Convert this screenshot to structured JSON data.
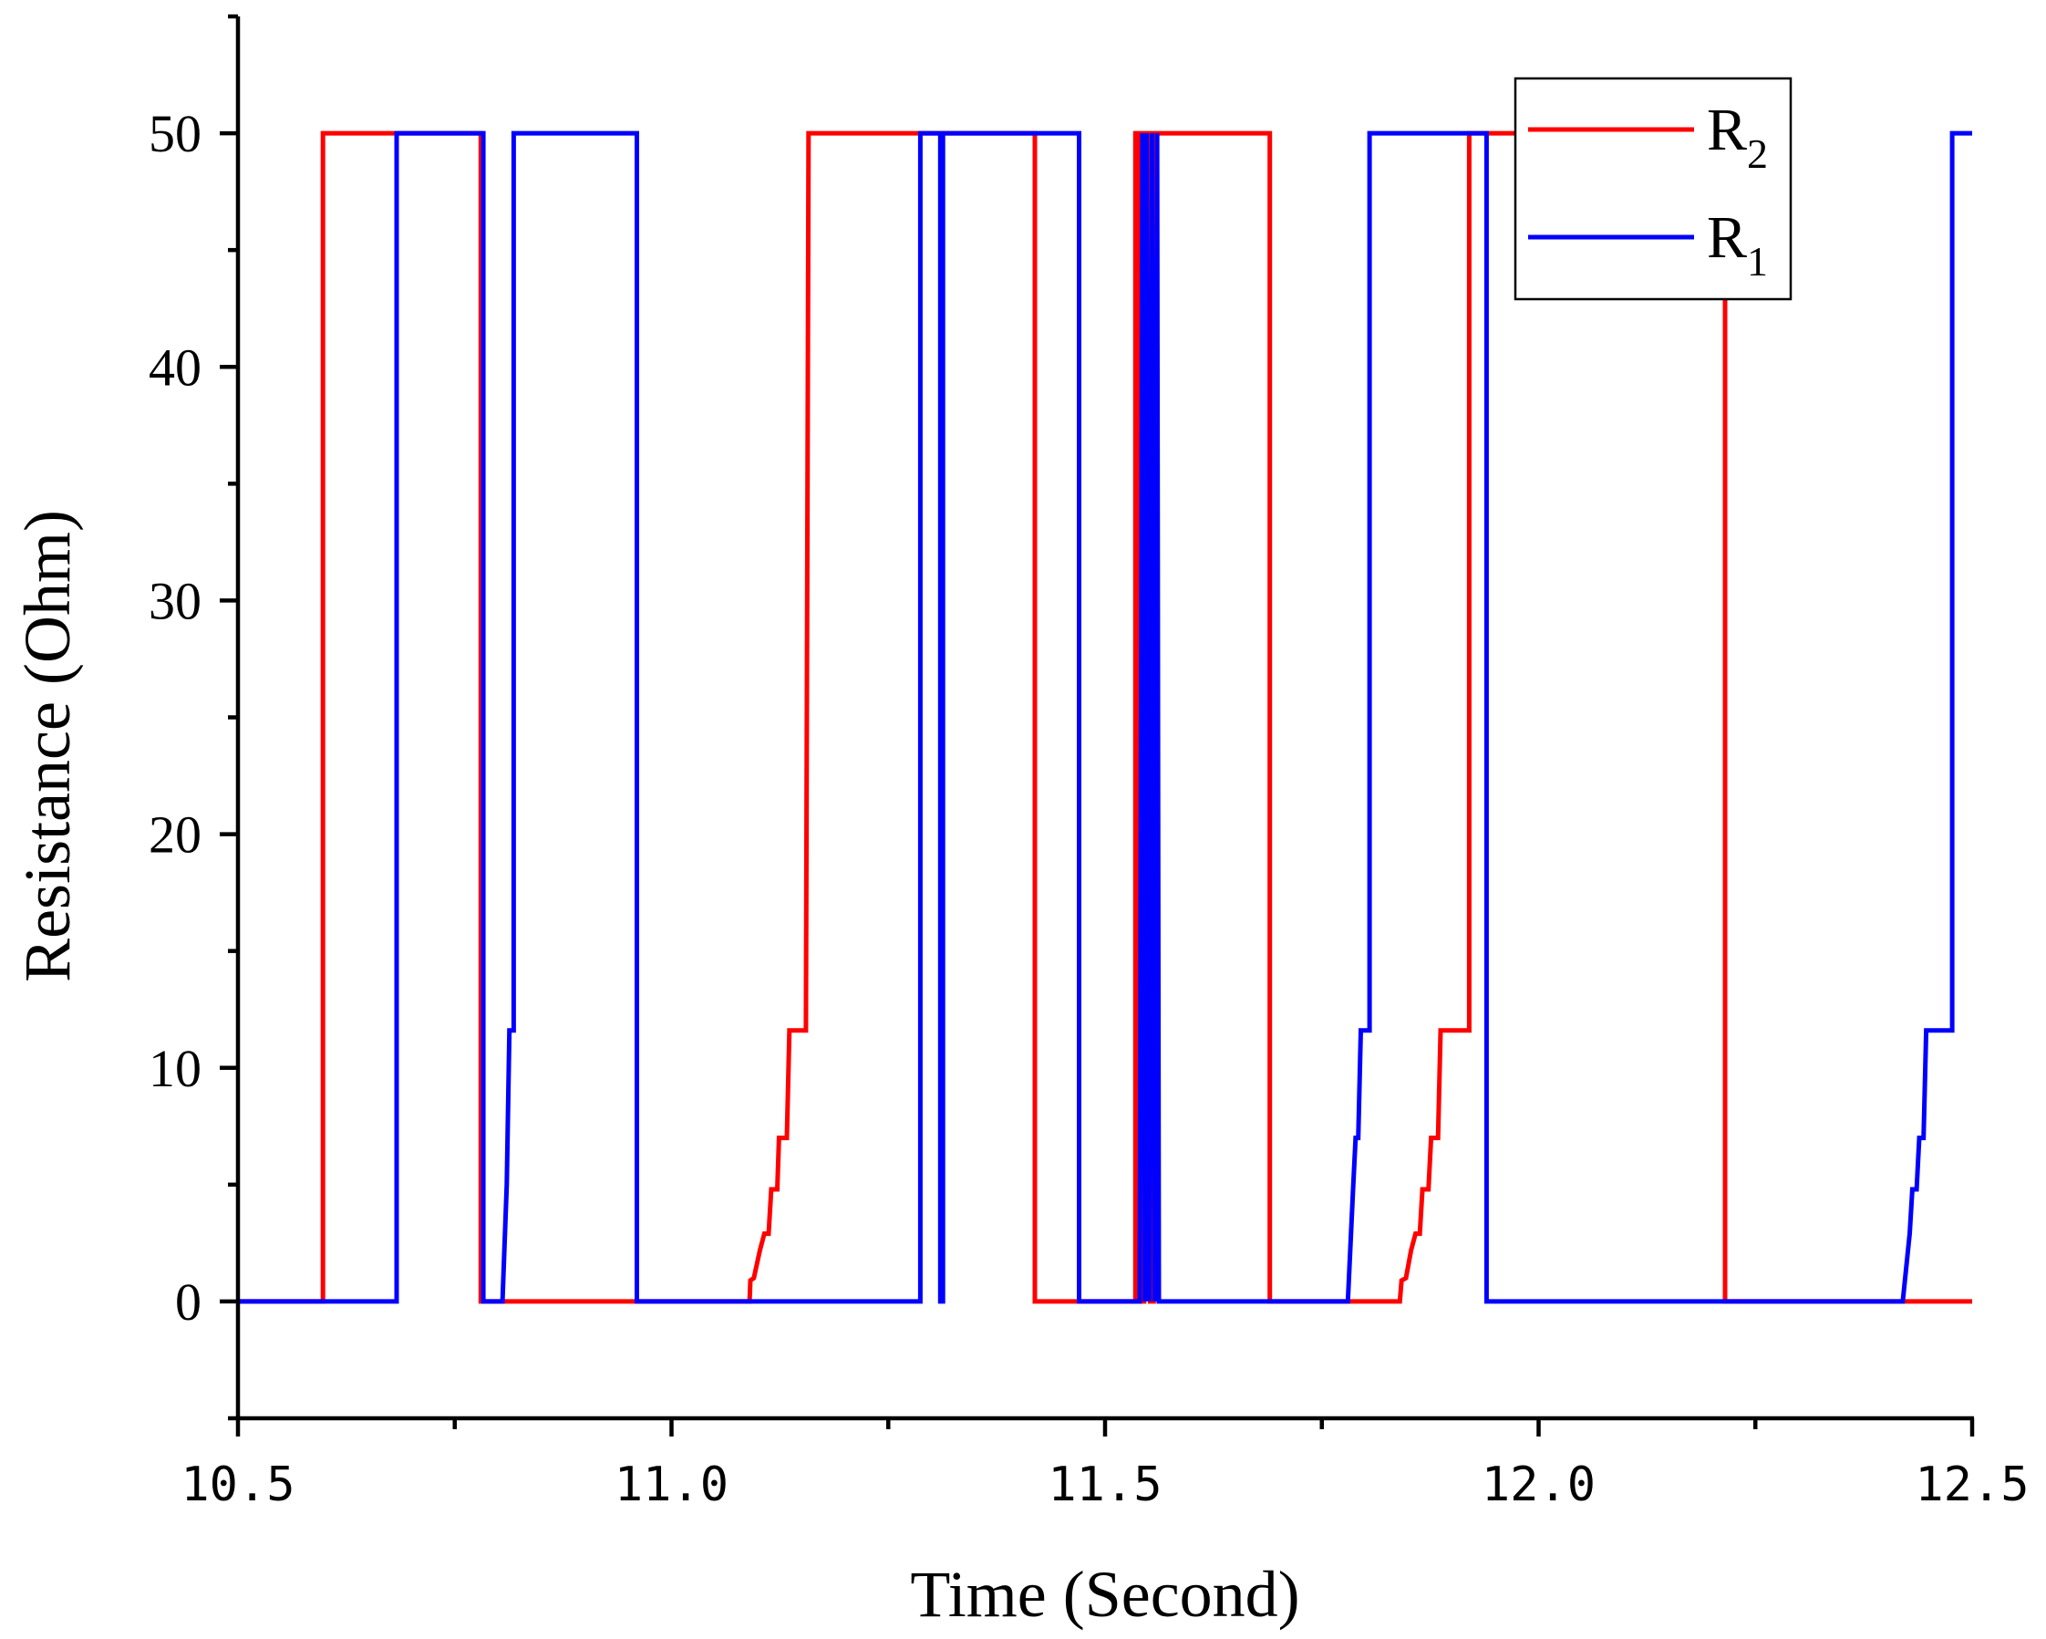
{
  "chart_data": {
    "type": "line",
    "title": "",
    "xlabel": "Time (Second)",
    "ylabel": "Resistance (Ohm)",
    "xlim": [
      10.5,
      12.5
    ],
    "ylim": [
      -5,
      55
    ],
    "grid": false,
    "x_ticks": [
      10.5,
      11.0,
      11.5,
      12.0,
      12.5
    ],
    "x_tick_labels": [
      "10.5",
      "11.0",
      "11.5",
      "12.0",
      "12.5"
    ],
    "y_ticks": [
      0,
      10,
      20,
      30,
      40,
      50
    ],
    "y_tick_labels": [
      "0",
      "10",
      "20",
      "30",
      "40",
      "50"
    ],
    "legend_position": "top-right",
    "series": [
      {
        "name": "R2",
        "label_main": "R",
        "label_sub": "2",
        "color": "#ff0000",
        "points": [
          [
            10.5,
            0
          ],
          [
            10.598,
            0
          ],
          [
            10.598,
            50
          ],
          [
            10.78,
            50
          ],
          [
            10.78,
            0
          ],
          [
            11.09,
            0
          ],
          [
            11.091,
            0.9
          ],
          [
            11.095,
            1
          ],
          [
            11.102,
            2.2
          ],
          [
            11.107,
            2.9
          ],
          [
            11.112,
            2.9
          ],
          [
            11.115,
            4.8
          ],
          [
            11.122,
            4.8
          ],
          [
            11.124,
            7
          ],
          [
            11.133,
            7
          ],
          [
            11.136,
            11.6
          ],
          [
            11.155,
            11.6
          ],
          [
            11.158,
            50
          ],
          [
            11.419,
            50
          ],
          [
            11.419,
            0
          ],
          [
            11.535,
            0
          ],
          [
            11.535,
            50
          ],
          [
            11.54,
            50
          ],
          [
            11.54,
            0
          ],
          [
            11.545,
            0
          ],
          [
            11.545,
            50
          ],
          [
            11.552,
            50
          ],
          [
            11.552,
            0
          ],
          [
            11.556,
            0
          ],
          [
            11.556,
            50
          ],
          [
            11.69,
            50
          ],
          [
            11.69,
            0
          ],
          [
            11.84,
            0
          ],
          [
            11.842,
            0.9
          ],
          [
            11.847,
            1
          ],
          [
            11.853,
            2.2
          ],
          [
            11.858,
            2.9
          ],
          [
            11.863,
            2.9
          ],
          [
            11.866,
            4.8
          ],
          [
            11.873,
            4.8
          ],
          [
            11.876,
            7
          ],
          [
            11.884,
            7
          ],
          [
            11.887,
            11.6
          ],
          [
            11.92,
            11.6
          ],
          [
            11.92,
            50
          ],
          [
            12.215,
            50
          ],
          [
            12.215,
            0
          ],
          [
            12.5,
            0
          ]
        ]
      },
      {
        "name": "R1",
        "label_main": "R",
        "label_sub": "1",
        "color": "#0000ff",
        "points": [
          [
            10.5,
            0
          ],
          [
            10.683,
            0
          ],
          [
            10.683,
            50
          ],
          [
            10.783,
            50
          ],
          [
            10.783,
            0
          ],
          [
            10.805,
            0
          ],
          [
            10.81,
            5
          ],
          [
            10.813,
            11.6
          ],
          [
            10.818,
            11.6
          ],
          [
            10.818,
            50
          ],
          [
            10.96,
            50
          ],
          [
            10.96,
            0
          ],
          [
            11.287,
            0
          ],
          [
            11.287,
            50
          ],
          [
            11.31,
            50
          ],
          [
            11.31,
            0
          ],
          [
            11.313,
            0
          ],
          [
            11.313,
            50
          ],
          [
            11.47,
            50
          ],
          [
            11.47,
            0
          ],
          [
            11.54,
            0
          ],
          [
            11.543,
            50
          ],
          [
            11.546,
            0
          ],
          [
            11.548,
            50
          ],
          [
            11.551,
            0
          ],
          [
            11.554,
            50
          ],
          [
            11.557,
            0
          ],
          [
            11.56,
            50
          ],
          [
            11.562,
            0
          ],
          [
            11.78,
            0
          ],
          [
            11.786,
            4.8
          ],
          [
            11.789,
            7
          ],
          [
            11.792,
            7
          ],
          [
            11.795,
            11.6
          ],
          [
            11.805,
            11.6
          ],
          [
            11.805,
            50
          ],
          [
            11.94,
            50
          ],
          [
            11.94,
            0
          ],
          [
            12.42,
            0
          ],
          [
            12.428,
            2.9
          ],
          [
            12.431,
            4.8
          ],
          [
            12.436,
            4.8
          ],
          [
            12.439,
            7
          ],
          [
            12.444,
            7
          ],
          [
            12.447,
            11.6
          ],
          [
            12.477,
            11.6
          ],
          [
            12.477,
            50
          ],
          [
            12.5,
            50
          ]
        ]
      }
    ]
  }
}
